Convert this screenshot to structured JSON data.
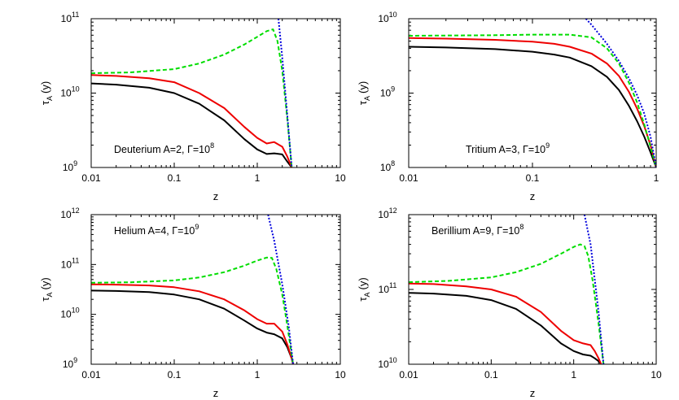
{
  "chart_data": [
    {
      "type": "line",
      "annotation": "Deuterium A=2, Γ=10",
      "annotation_exp": "8",
      "xlabel": "z",
      "ylabel_main": "τ",
      "ylabel_sub": "A",
      "ylabel_unit": "(y)",
      "xscale": "log",
      "yscale": "log",
      "xlim": [
        0.01,
        10
      ],
      "ylim": [
        1000000000.0,
        100000000000.0
      ],
      "xticks": [
        "0.01",
        "0.1",
        "1",
        "10"
      ],
      "yticks": [
        {
          "base": "10",
          "exp": "9",
          "value": 1000000000.0
        },
        {
          "base": "10",
          "exp": "10",
          "value": 10000000000.0
        },
        {
          "base": "10",
          "exp": "11",
          "value": 100000000000.0
        }
      ],
      "series": [
        {
          "color": "#000000",
          "dash": "",
          "x": [
            0.01,
            0.02,
            0.05,
            0.1,
            0.2,
            0.4,
            0.7,
            1.0,
            1.3,
            1.6,
            2.0,
            2.3,
            2.6
          ],
          "y": [
            13500000000.0,
            13000000000.0,
            11800000000.0,
            10000000000.0,
            7200000000.0,
            4300000000.0,
            2400000000.0,
            1750000000.0,
            1520000000.0,
            1550000000.0,
            1500000000.0,
            1200000000.0,
            1000000000.0
          ]
        },
        {
          "color": "#ee0000",
          "dash": "",
          "x": [
            0.01,
            0.02,
            0.05,
            0.1,
            0.2,
            0.4,
            0.7,
            1.0,
            1.3,
            1.6,
            2.0,
            2.3,
            2.6
          ],
          "y": [
            17500000000.0,
            17000000000.0,
            15800000000.0,
            14000000000.0,
            10000000000.0,
            6300000000.0,
            3500000000.0,
            2500000000.0,
            2100000000.0,
            2200000000.0,
            1900000000.0,
            1400000000.0,
            1000000000.0
          ]
        },
        {
          "color": "#00dd00",
          "dash": "5,3",
          "x": [
            0.01,
            0.03,
            0.1,
            0.2,
            0.4,
            0.7,
            1.0,
            1.3,
            1.55,
            1.75,
            2.0,
            2.3,
            2.6
          ],
          "y": [
            18500000000.0,
            19000000000.0,
            21000000000.0,
            25000000000.0,
            33000000000.0,
            45000000000.0,
            57000000000.0,
            68000000000.0,
            72000000000.0,
            50000000000.0,
            20000000000.0,
            4500000000.0,
            1000000000.0
          ]
        },
        {
          "color": "#0000dd",
          "dash": "2,2",
          "x": [
            1.8,
            2.0,
            2.3,
            2.6
          ],
          "y": [
            100000000000.0,
            30000000000.0,
            5000000000.0,
            1000000000.0
          ]
        }
      ]
    },
    {
      "type": "line",
      "annotation": "Tritium A=3, Γ=10",
      "annotation_exp": "9",
      "xlabel": "z",
      "ylabel_main": "τ",
      "ylabel_sub": "A",
      "ylabel_unit": "(y)",
      "xscale": "log",
      "yscale": "log",
      "xlim": [
        0.01,
        1
      ],
      "ylim": [
        100000000.0,
        10000000000.0
      ],
      "xticks": [
        "0.01",
        "0.1",
        "1"
      ],
      "yticks": [
        {
          "base": "10",
          "exp": "8",
          "value": 100000000.0
        },
        {
          "base": "10",
          "exp": "9",
          "value": 1000000000.0
        },
        {
          "base": "10",
          "exp": "10",
          "value": 10000000000.0
        }
      ],
      "series": [
        {
          "color": "#000000",
          "dash": "",
          "x": [
            0.01,
            0.02,
            0.05,
            0.1,
            0.15,
            0.2,
            0.3,
            0.4,
            0.5,
            0.6,
            0.7,
            0.8,
            0.9,
            1.0
          ],
          "y": [
            4200000000.0,
            4100000000.0,
            3900000000.0,
            3600000000.0,
            3300000000.0,
            3000000000.0,
            2300000000.0,
            1650000000.0,
            1100000000.0,
            680000000.0,
            420000000.0,
            260000000.0,
            160000000.0,
            100000000.0
          ]
        },
        {
          "color": "#ee0000",
          "dash": "",
          "x": [
            0.01,
            0.02,
            0.05,
            0.1,
            0.15,
            0.2,
            0.3,
            0.4,
            0.5,
            0.6,
            0.7,
            0.8,
            0.9,
            1.0
          ],
          "y": [
            5500000000.0,
            5400000000.0,
            5200000000.0,
            4900000000.0,
            4600000000.0,
            4200000000.0,
            3400000000.0,
            2500000000.0,
            1700000000.0,
            1050000000.0,
            620000000.0,
            360000000.0,
            200000000.0,
            100000000.0
          ]
        },
        {
          "color": "#00dd00",
          "dash": "5,3",
          "x": [
            0.01,
            0.05,
            0.1,
            0.2,
            0.3,
            0.4,
            0.5,
            0.6,
            0.7,
            0.8,
            0.9,
            1.0
          ],
          "y": [
            5900000000.0,
            6000000000.0,
            6100000000.0,
            6100000000.0,
            5600000000.0,
            4000000000.0,
            2500000000.0,
            1400000000.0,
            750000000.0,
            380000000.0,
            190000000.0,
            100000000.0
          ]
        },
        {
          "color": "#0000dd",
          "dash": "2,2",
          "x": [
            0.27,
            0.3,
            0.4,
            0.5,
            0.6,
            0.7,
            0.8,
            0.9,
            1.0
          ],
          "y": [
            10000000000.0,
            8300000000.0,
            4600000000.0,
            2700000000.0,
            1600000000.0,
            940000000.0,
            530000000.0,
            260000000.0,
            100000000.0
          ]
        }
      ]
    },
    {
      "type": "line",
      "annotation": "Helium A=4, Γ=10",
      "annotation_exp": "9",
      "xlabel": "z",
      "ylabel_main": "τ",
      "ylabel_sub": "A",
      "ylabel_unit": "(y)",
      "xscale": "log",
      "yscale": "log",
      "xlim": [
        0.01,
        10
      ],
      "ylim": [
        1000000000.0,
        1000000000000.0
      ],
      "xticks": [
        "0.01",
        "0.1",
        "1",
        "10"
      ],
      "yticks": [
        {
          "base": "10",
          "exp": "9",
          "value": 1000000000.0
        },
        {
          "base": "10",
          "exp": "10",
          "value": 10000000000.0
        },
        {
          "base": "10",
          "exp": "11",
          "value": 100000000000.0
        },
        {
          "base": "10",
          "exp": "12",
          "value": 1000000000000.0
        }
      ],
      "series": [
        {
          "color": "#000000",
          "dash": "",
          "x": [
            0.01,
            0.02,
            0.05,
            0.1,
            0.2,
            0.4,
            0.7,
            1.0,
            1.3,
            1.6,
            2.0,
            2.3,
            2.6,
            2.7
          ],
          "y": [
            30000000000.0,
            29500000000.0,
            28000000000.0,
            25000000000.0,
            20000000000.0,
            13000000000.0,
            7500000000.0,
            5200000000.0,
            4300000000.0,
            4000000000.0,
            3300000000.0,
            2200000000.0,
            1300000000.0,
            1000000000.0
          ]
        },
        {
          "color": "#ee0000",
          "dash": "",
          "x": [
            0.01,
            0.02,
            0.05,
            0.1,
            0.2,
            0.4,
            0.7,
            1.0,
            1.3,
            1.6,
            2.0,
            2.3,
            2.6,
            2.7
          ],
          "y": [
            40000000000.0,
            39500000000.0,
            38000000000.0,
            35000000000.0,
            29000000000.0,
            20000000000.0,
            12000000000.0,
            8000000000.0,
            6500000000.0,
            6500000000.0,
            4500000000.0,
            2500000000.0,
            1300000000.0,
            1000000000.0
          ]
        },
        {
          "color": "#00dd00",
          "dash": "5,3",
          "x": [
            0.01,
            0.03,
            0.1,
            0.2,
            0.4,
            0.7,
            1.0,
            1.3,
            1.5,
            1.7,
            2.0,
            2.3,
            2.6,
            2.7
          ],
          "y": [
            43000000000.0,
            44000000000.0,
            48000000000.0,
            55000000000.0,
            70000000000.0,
            95000000000.0,
            120000000000.0,
            138000000000.0,
            135000000000.0,
            80000000000.0,
            25000000000.0,
            6000000000.0,
            1500000000.0,
            1000000000.0
          ]
        },
        {
          "color": "#0000dd",
          "dash": "2,2",
          "x": [
            1.35,
            1.6,
            2.0,
            2.4,
            2.7
          ],
          "y": [
            1000000000000.0,
            300000000000.0,
            40000000000.0,
            5500000000.0,
            1000000000.0
          ]
        }
      ]
    },
    {
      "type": "line",
      "annotation": "Berillium A=9, Γ=10",
      "annotation_exp": "8",
      "xlabel": "z",
      "ylabel_main": "τ",
      "ylabel_sub": "A",
      "ylabel_unit": "(y)",
      "xscale": "log",
      "yscale": "log",
      "xlim": [
        0.01,
        10
      ],
      "ylim": [
        10000000000.0,
        1000000000000.0
      ],
      "xticks": [
        "0.01",
        "0.1",
        "1",
        "10"
      ],
      "yticks": [
        {
          "base": "10",
          "exp": "10",
          "value": 10000000000.0
        },
        {
          "base": "10",
          "exp": "11",
          "value": 100000000000.0
        },
        {
          "base": "10",
          "exp": "12",
          "value": 1000000000000.0
        }
      ],
      "series": [
        {
          "color": "#000000",
          "dash": "",
          "x": [
            0.01,
            0.02,
            0.05,
            0.1,
            0.2,
            0.4,
            0.7,
            1.0,
            1.3,
            1.6,
            1.8,
            2.0,
            2.15
          ],
          "y": [
            90000000000.0,
            88000000000.0,
            82000000000.0,
            72000000000.0,
            55000000000.0,
            33000000000.0,
            19000000000.0,
            15000000000.0,
            13500000000.0,
            13000000000.0,
            12000000000.0,
            11000000000.0,
            10000000000.0
          ]
        },
        {
          "color": "#ee0000",
          "dash": "",
          "x": [
            0.01,
            0.02,
            0.05,
            0.1,
            0.2,
            0.4,
            0.7,
            1.0,
            1.3,
            1.6,
            1.8,
            2.0,
            2.15
          ],
          "y": [
            120000000000.0,
            118000000000.0,
            110000000000.0,
            100000000000.0,
            80000000000.0,
            50000000000.0,
            28000000000.0,
            21000000000.0,
            19000000000.0,
            18000000000.0,
            15000000000.0,
            12000000000.0,
            10000000000.0
          ]
        },
        {
          "color": "#00dd00",
          "dash": "5,3",
          "x": [
            0.01,
            0.03,
            0.1,
            0.2,
            0.4,
            0.7,
            1.0,
            1.2,
            1.35,
            1.5,
            1.7,
            2.0,
            2.3
          ],
          "y": [
            125000000000.0,
            130000000000.0,
            145000000000.0,
            170000000000.0,
            220000000000.0,
            300000000000.0,
            370000000000.0,
            400000000000.0,
            380000000000.0,
            280000000000.0,
            130000000000.0,
            35000000000.0,
            10000000000.0
          ]
        },
        {
          "color": "#0000dd",
          "dash": "2,2",
          "x": [
            1.35,
            1.6,
            2.0,
            2.3
          ],
          "y": [
            1000000000000.0,
            400000000000.0,
            50000000000.0,
            10000000000.0
          ]
        }
      ]
    }
  ]
}
